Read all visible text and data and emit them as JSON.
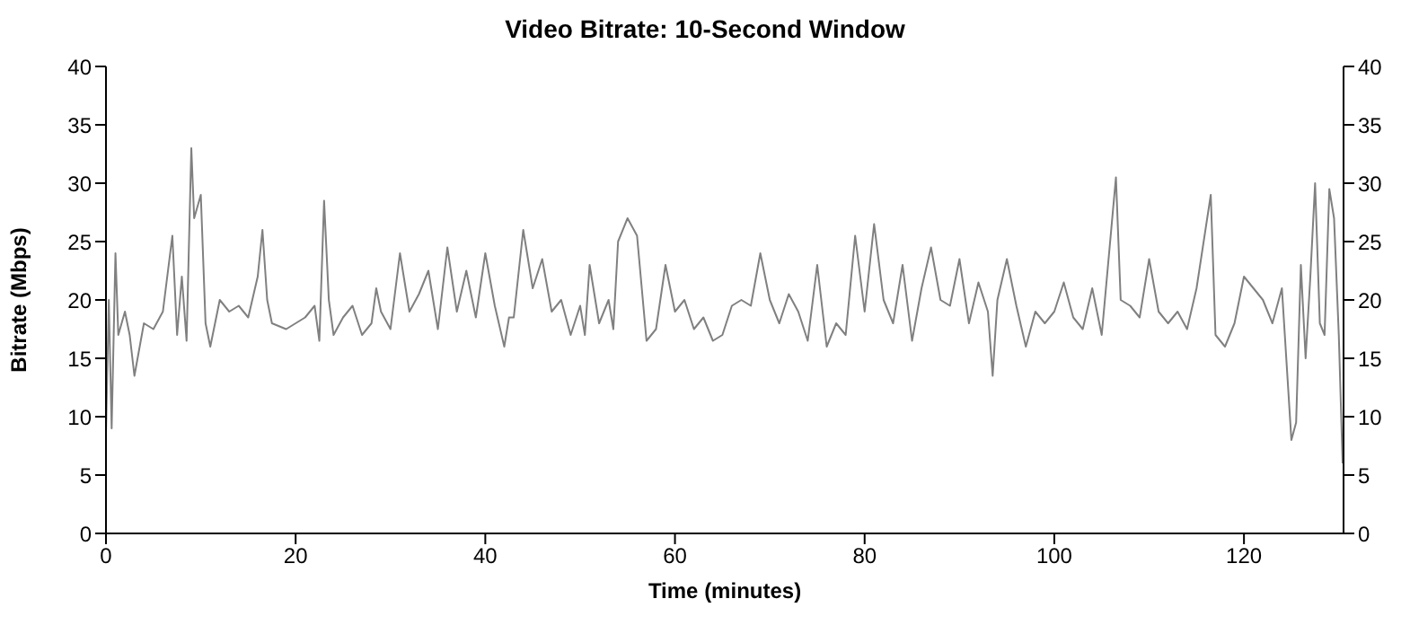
{
  "chart_data": {
    "type": "line",
    "title": "Video Bitrate: 10-Second Window",
    "xlabel": "Time (minutes)",
    "ylabel": "Bitrate (Mbps)",
    "xlim": [
      0,
      130.5
    ],
    "xticks": [
      0,
      20,
      40,
      60,
      80,
      100,
      120
    ],
    "ylim": [
      0,
      40
    ],
    "yticks": [
      0,
      5,
      10,
      15,
      20,
      25,
      30,
      35,
      40
    ],
    "y2lim": [
      0,
      40
    ],
    "y2ticks": [
      0,
      5,
      10,
      15,
      20,
      25,
      30,
      35,
      40
    ],
    "marker": "none",
    "line_style": "solid",
    "x": [
      0,
      0.3,
      0.6,
      1,
      1.3,
      2,
      2.5,
      3,
      4,
      5,
      6,
      7,
      7.5,
      8,
      8.5,
      9,
      9.3,
      10,
      10.5,
      11,
      12,
      13,
      14,
      15,
      16,
      16.5,
      17,
      17.5,
      19,
      21,
      22,
      22.5,
      23,
      23.5,
      24,
      25,
      26,
      27,
      28,
      28.5,
      29,
      30,
      31,
      32,
      33,
      34,
      35,
      36,
      37,
      38,
      39,
      40,
      41,
      42,
      42.5,
      43,
      44,
      45,
      46,
      47,
      48,
      49,
      50,
      50.5,
      51,
      52,
      53,
      53.5,
      54,
      55,
      56,
      57,
      58,
      59,
      60,
      61,
      62,
      63,
      64,
      65,
      66,
      67,
      68,
      69,
      70,
      71,
      72,
      73,
      74,
      75,
      76,
      77,
      78,
      79,
      80,
      81,
      82,
      83,
      84,
      85,
      86,
      87,
      88,
      89,
      90,
      91,
      92,
      93,
      93.5,
      94,
      95,
      96,
      97,
      98,
      99,
      100,
      101,
      102,
      103,
      104,
      105,
      106.5,
      107,
      108,
      109,
      110,
      111,
      112,
      113,
      114,
      115,
      116.5,
      117,
      118,
      119,
      120,
      121,
      122,
      123,
      124,
      125,
      125.5,
      126,
      126.5,
      127,
      127.5,
      128,
      128.5,
      129,
      129.5,
      130,
      130.4
    ],
    "series": [
      {
        "color": "#808080",
        "values": [
          8.5,
          20,
          9,
          24,
          17,
          19,
          17,
          13.5,
          18,
          17.5,
          19,
          25.5,
          17,
          22,
          16.5,
          33,
          27,
          29,
          18,
          16,
          20,
          19,
          19.5,
          18.5,
          22,
          26,
          20,
          18,
          17.5,
          18.5,
          19.5,
          16.5,
          28.5,
          20,
          17,
          18.5,
          19.5,
          17,
          18,
          21,
          19,
          17.5,
          24,
          19,
          20.5,
          22.5,
          17.5,
          24.5,
          19,
          22.5,
          18.5,
          24,
          19.5,
          16,
          18.5,
          18.5,
          26,
          21,
          23.5,
          19,
          20,
          17,
          19.5,
          17,
          23,
          18,
          20,
          17.5,
          25,
          27,
          25.5,
          16.5,
          17.5,
          23,
          19,
          20,
          17.5,
          18.5,
          16.5,
          17,
          19.5,
          20,
          19.5,
          24,
          20,
          18,
          20.5,
          19,
          16.5,
          23,
          16,
          18,
          17,
          25.5,
          19,
          26.5,
          20,
          18,
          23,
          16.5,
          21,
          24.5,
          20,
          19.5,
          23.5,
          18,
          21.5,
          19,
          13.5,
          20,
          23.5,
          19.5,
          16,
          19,
          18,
          19,
          21.5,
          18.5,
          17.5,
          21,
          17,
          30.5,
          20,
          19.5,
          18.5,
          23.5,
          19,
          18,
          19,
          17.5,
          21,
          29,
          17,
          16,
          18,
          22,
          21,
          20,
          18,
          21,
          8,
          9.5,
          23,
          15,
          22,
          30,
          18,
          17,
          29.5,
          27,
          17,
          6
        ]
      }
    ]
  }
}
